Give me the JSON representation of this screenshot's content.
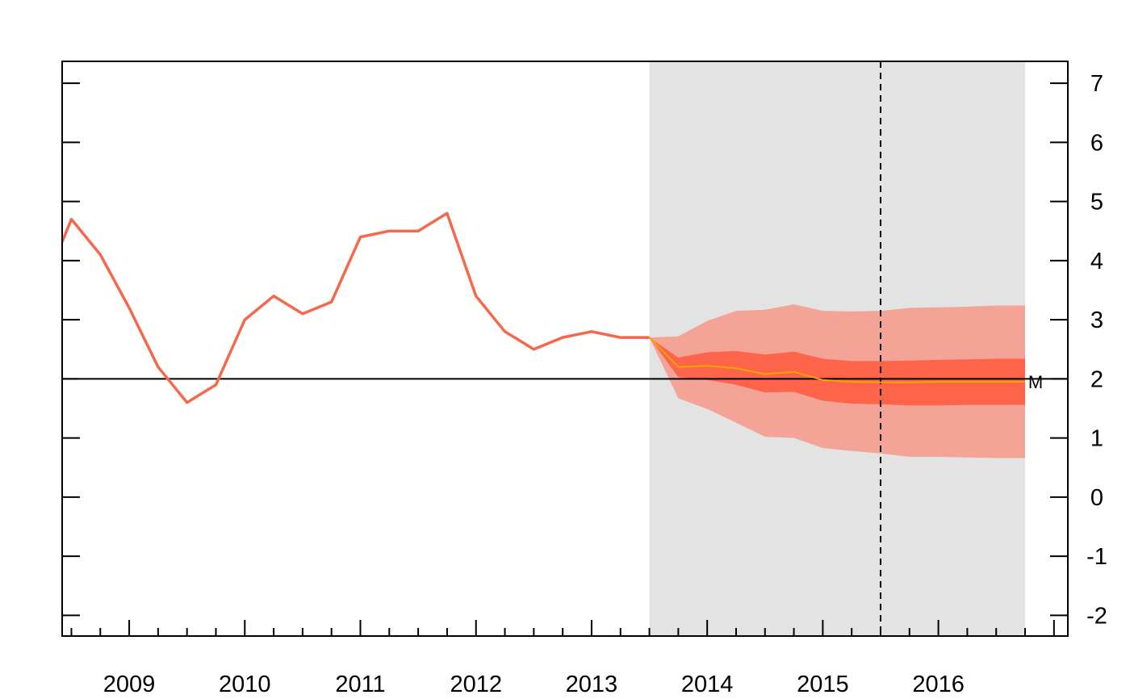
{
  "chart_data": {
    "type": "line",
    "title": "",
    "xlabel": "",
    "ylabel": "",
    "xlim": [
      2008.42,
      2017.12
    ],
    "ylim": [
      -2.35,
      7.37
    ],
    "y_ticks": [
      7,
      6,
      5,
      4,
      3,
      2,
      1,
      0,
      -1,
      -2
    ],
    "y_tick_labels": [
      "7",
      "6",
      "5",
      "4",
      "3",
      "2",
      "1",
      "0",
      "-1",
      "-2"
    ],
    "x_year_labels": [
      "2009",
      "2010",
      "2011",
      "2012",
      "2013",
      "2014",
      "2015",
      "2016"
    ],
    "axis_side": "right",
    "grid": false,
    "reference_line_y": 2,
    "forecast_shade_start": 2013.5,
    "forecast_shade_end": 2016.75,
    "vertical_dashed_x": 2015.5,
    "end_marker_label": "M",
    "series": [
      {
        "role": "actual",
        "x": [
          2008.5,
          2008.75,
          2009.0,
          2009.25,
          2009.5,
          2009.75,
          2010.0,
          2010.25,
          2010.5,
          2010.75,
          2011.0,
          2011.25,
          2011.5,
          2011.75,
          2012.0,
          2012.25,
          2012.5,
          2012.75,
          2013.0,
          2013.25,
          2013.5
        ],
        "values": [
          4.7,
          4.1,
          3.2,
          2.2,
          1.6,
          1.9,
          3.0,
          3.4,
          3.1,
          3.3,
          4.4,
          4.5,
          4.5,
          4.8,
          3.4,
          2.8,
          2.5,
          2.7,
          2.8,
          2.7,
          2.7
        ]
      },
      {
        "role": "forecast_median",
        "x": [
          2013.5,
          2013.75,
          2014.0,
          2014.25,
          2014.5,
          2014.75,
          2015.0,
          2015.25,
          2015.5,
          2015.75,
          2016.0,
          2016.25,
          2016.5,
          2016.75
        ],
        "values": [
          2.7,
          2.2,
          2.22,
          2.18,
          2.08,
          2.12,
          1.98,
          1.95,
          1.94,
          1.94,
          1.95,
          1.95,
          1.95,
          1.95
        ]
      }
    ],
    "fan_bands": [
      {
        "role": "outer",
        "x": [
          2013.5,
          2013.75,
          2014.0,
          2014.25,
          2014.5,
          2014.75,
          2015.0,
          2015.25,
          2015.5,
          2015.75,
          2016.0,
          2016.25,
          2016.5,
          2016.75
        ],
        "upper": [
          2.7,
          2.72,
          2.98,
          3.15,
          3.17,
          3.26,
          3.15,
          3.14,
          3.15,
          3.2,
          3.21,
          3.22,
          3.24,
          3.24
        ],
        "lower": [
          2.7,
          1.67,
          1.49,
          1.26,
          1.02,
          1.0,
          0.83,
          0.78,
          0.74,
          0.68,
          0.68,
          0.67,
          0.66,
          0.66
        ]
      },
      {
        "role": "inner",
        "x": [
          2013.5,
          2013.75,
          2014.0,
          2014.25,
          2014.5,
          2014.75,
          2015.0,
          2015.25,
          2015.5,
          2015.75,
          2016.0,
          2016.25,
          2016.5,
          2016.75
        ],
        "upper": [
          2.7,
          2.36,
          2.45,
          2.47,
          2.41,
          2.46,
          2.34,
          2.3,
          2.3,
          2.31,
          2.32,
          2.33,
          2.34,
          2.34
        ],
        "lower": [
          2.7,
          2.03,
          1.98,
          1.9,
          1.77,
          1.78,
          1.63,
          1.58,
          1.57,
          1.55,
          1.55,
          1.56,
          1.56,
          1.56
        ]
      }
    ]
  },
  "colors": {
    "actual_line": "#f4684d",
    "median_line": "#f5a500",
    "outer_band": "#f3a497",
    "inner_band": "#fd644a",
    "forecast_shade": "#e3e3e3",
    "axis": "#000000"
  }
}
